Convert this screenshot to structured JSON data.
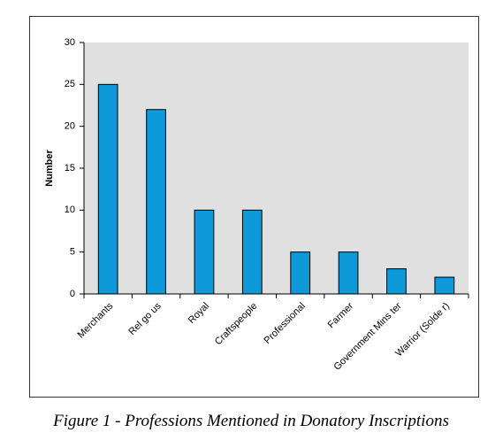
{
  "chart_data": {
    "type": "bar",
    "caption": "Figure 1 - Professions Mentioned in Donatory Inscriptions",
    "ylabel": "Number",
    "categories": [
      "Merchants",
      "Rel go us",
      "Royal",
      "Craftspeople",
      "Professional",
      "Farmer",
      "Government Mins ter",
      "Warrior (Solde r)"
    ],
    "values": [
      25,
      22,
      10,
      10,
      5,
      5,
      3,
      2
    ],
    "color": "#0e9ad8",
    "ylim": [
      0,
      30
    ],
    "yticks": [
      0,
      5,
      10,
      15,
      20,
      25,
      30
    ],
    "grid": false
  }
}
